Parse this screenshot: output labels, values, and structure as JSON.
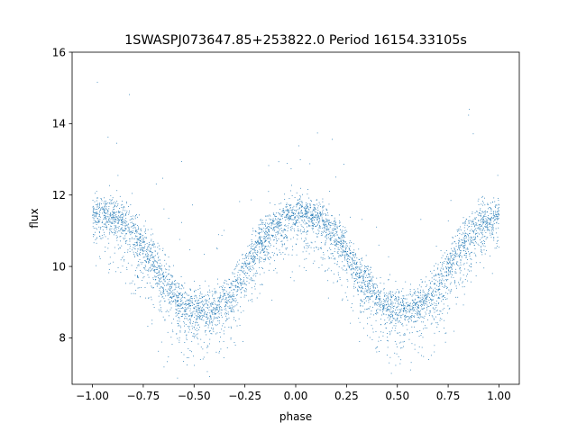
{
  "chart_data": {
    "type": "scatter",
    "title": "1SWASPJ073647.85+253822.0 Period 16154.33105s",
    "xlabel": "phase",
    "ylabel": "flux",
    "xlim": [
      -1.1,
      1.1
    ],
    "ylim": [
      6.7,
      16.0
    ],
    "xticks": [
      -1.0,
      -0.75,
      -0.5,
      -0.25,
      0.0,
      0.25,
      0.5,
      0.75,
      1.0
    ],
    "xtick_labels": [
      "−1.00",
      "−0.75",
      "−0.50",
      "−0.25",
      "0.00",
      "0.25",
      "0.50",
      "0.75",
      "1.00"
    ],
    "yticks": [
      8,
      10,
      12,
      14,
      16
    ],
    "ytick_labels": [
      "8",
      "10",
      "12",
      "14",
      "16"
    ],
    "grid": false,
    "legend": "none",
    "marker_color": "#1f77b4",
    "series": [
      {
        "x": [
          -1.0,
          -0.95,
          -0.9,
          -0.85,
          -0.8,
          -0.75,
          -0.7,
          -0.65,
          -0.6,
          -0.55,
          -0.5,
          -0.45,
          -0.4,
          -0.35,
          -0.3,
          -0.25,
          -0.2,
          -0.15,
          -0.1,
          -0.05,
          0.0,
          0.05,
          0.1,
          0.15,
          0.2,
          0.25,
          0.3,
          0.35,
          0.4,
          0.45,
          0.5,
          0.55,
          0.6,
          0.65,
          0.7,
          0.75,
          0.8,
          0.85,
          0.9,
          0.95,
          1.0
        ],
        "y": [
          11.5,
          11.55,
          11.5,
          11.3,
          11.0,
          10.6,
          10.2,
          9.7,
          9.3,
          9.0,
          8.85,
          8.8,
          8.85,
          9.1,
          9.5,
          10.0,
          10.5,
          10.9,
          11.2,
          11.45,
          11.55,
          11.55,
          11.45,
          11.2,
          10.9,
          10.5,
          10.0,
          9.55,
          9.2,
          8.95,
          8.85,
          8.85,
          8.95,
          9.2,
          9.55,
          10.0,
          10.5,
          10.9,
          11.2,
          11.4,
          11.5
        ],
        "scatter_width": [
          0.4,
          0.5,
          0.6,
          0.6,
          0.7,
          0.7,
          0.7,
          0.7,
          0.6,
          0.6,
          0.6,
          0.6,
          0.6,
          0.6,
          0.6,
          0.6,
          0.6,
          0.6,
          0.5,
          0.5,
          0.5,
          0.5,
          0.5,
          0.5,
          0.6,
          0.6,
          0.6,
          0.6,
          0.6,
          0.6,
          0.6,
          0.6,
          0.6,
          0.6,
          0.6,
          0.6,
          0.6,
          0.6,
          0.6,
          0.5,
          0.4
        ],
        "n_points": 5200
      }
    ]
  }
}
